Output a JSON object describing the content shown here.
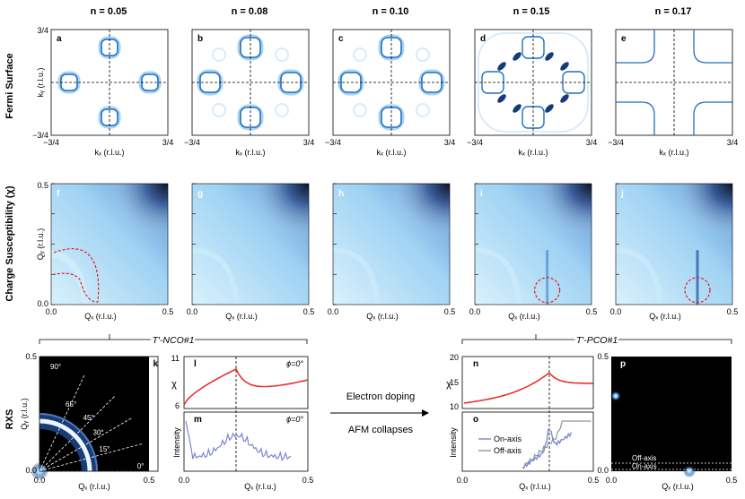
{
  "dopings": [
    "n = 0.05",
    "n = 0.08",
    "n = 0.10",
    "n = 0.15",
    "n = 0.17"
  ],
  "row_labels": {
    "fermi": "Fermi Surface",
    "chi": "Charge Susceptibility (χ)",
    "rxs": "RXS"
  },
  "fermi": {
    "letters": [
      "a",
      "b",
      "c",
      "d",
      "e"
    ],
    "xlabel": "kₓ (r.l.u.)",
    "ylabel": "kᵧ (r.l.u.)",
    "tick_min": "−3/4",
    "tick_max": "3/4",
    "panels": [
      {
        "pockets": "small"
      },
      {
        "pockets": "medium"
      },
      {
        "pockets": "medium"
      },
      {
        "pockets": "reconstructed"
      },
      {
        "pockets": "large"
      }
    ]
  },
  "chi": {
    "letters": [
      "f",
      "g",
      "h",
      "i",
      "j"
    ],
    "xlabel": "Qₓ (r.l.u.)",
    "ylabel": "Qᵧ (r.l.u.)",
    "ticks": [
      "0.0",
      "0.5"
    ]
  },
  "brackets": {
    "left": "T′-NCO#1",
    "right": "T′-PCO#1"
  },
  "rxs": {
    "k": {
      "letter": "k",
      "angles": [
        "90°",
        "65°",
        "45°",
        "30°",
        "15°",
        "0°"
      ],
      "ticks": [
        "0.0",
        "0.5"
      ],
      "xlabel": "Qₓ (r.l.u.)",
      "ylabel": "Qᵧ (r.l.u.)"
    },
    "l": {
      "letter": "l",
      "ylabel": "χ",
      "phi": "ϕ=0°",
      "yticks": [
        "11",
        "6"
      ]
    },
    "m": {
      "letter": "m",
      "ylabel": "Intensity",
      "phi": "ϕ=0°",
      "xticks": [
        "0.0",
        "0.5"
      ],
      "xlabel": "Qₓ (r.l.u.)"
    },
    "arrow": {
      "top": "Electron doping",
      "bottom": "AFM collapses"
    },
    "n": {
      "letter": "n",
      "ylabel": "χ",
      "yticks": [
        "20",
        "15",
        "10"
      ]
    },
    "o": {
      "letter": "o",
      "ylabel": "Intensity",
      "xticks": [
        "0.0",
        "0.5"
      ],
      "xlabel": "Qₓ (r.l.u.)",
      "legend": [
        "On-axis",
        "Off-axis"
      ]
    },
    "p": {
      "letter": "p",
      "ticks": [
        "0.0",
        "0.5"
      ],
      "xlabel": "Qₓ (r.l.u.)",
      "labels": [
        "Off-axis",
        "On-axis"
      ]
    }
  },
  "colors": {
    "accent": "#1f6fc2",
    "curve": "#e8322a",
    "trace": "#7a86d6",
    "gray": "#8e9a8e"
  }
}
